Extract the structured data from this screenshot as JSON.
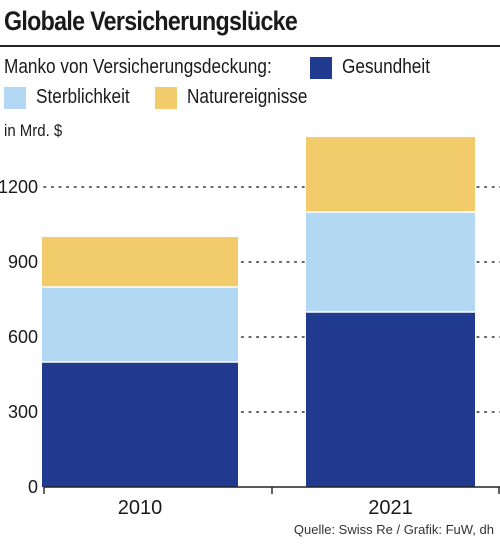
{
  "title": "Globale Versicherungslücke",
  "legend_intro": "Manko von Versicherungsdeckung:",
  "unit": "in Mrd. $",
  "source": "Quelle: Swiss Re / Grafik: FuW, dh",
  "colors": {
    "Gesundheit": "#1f3a8f",
    "Sterblichkeit": "#b3d8f3",
    "Naturereignisse": "#f2cb6a"
  },
  "chart_data": {
    "type": "bar",
    "stacked": true,
    "categories": [
      "2010",
      "2021"
    ],
    "series": [
      {
        "name": "Gesundheit",
        "values": [
          500,
          700
        ]
      },
      {
        "name": "Sterblichkeit",
        "values": [
          300,
          400
        ]
      },
      {
        "name": "Naturereignisse",
        "values": [
          200,
          300
        ]
      }
    ],
    "ylabel": "in Mrd. $",
    "ylim": [
      0,
      1500
    ],
    "yticks": [
      0,
      300,
      600,
      900,
      1200
    ],
    "grid": true,
    "legend_position": "top"
  }
}
